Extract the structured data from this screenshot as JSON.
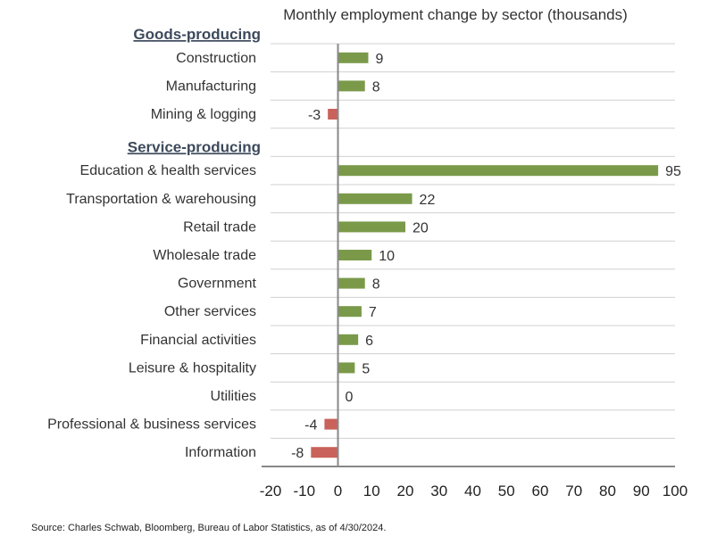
{
  "chart_data": {
    "type": "bar",
    "orientation": "horizontal",
    "title": "Monthly employment change by sector (thousands)",
    "groups": [
      {
        "name": "Goods-producing",
        "categories": [
          "Construction",
          "Manufacturing",
          "Mining & logging"
        ],
        "values": [
          9,
          8,
          -3
        ]
      },
      {
        "name": "Service-producing",
        "categories": [
          "Education & health services",
          "Transportation & warehousing",
          "Retail trade",
          "Wholesale trade",
          "Government",
          "Other services",
          "Financial activities",
          "Leisure & hospitality",
          "Utilities",
          "Professional & business services",
          "Information"
        ],
        "values": [
          95,
          22,
          20,
          10,
          8,
          7,
          6,
          5,
          0,
          -4,
          -8
        ]
      }
    ],
    "xlim": [
      -20,
      100
    ],
    "xticks": [
      -20,
      -10,
      0,
      10,
      20,
      30,
      40,
      50,
      60,
      70,
      80,
      90,
      100
    ],
    "grid": true,
    "colors": {
      "positive": "#7a9a4a",
      "negative": "#c9625a"
    }
  },
  "source": "Source: Charles Schwab, Bloomberg, Bureau of Labor Statistics, as of 4/30/2024."
}
